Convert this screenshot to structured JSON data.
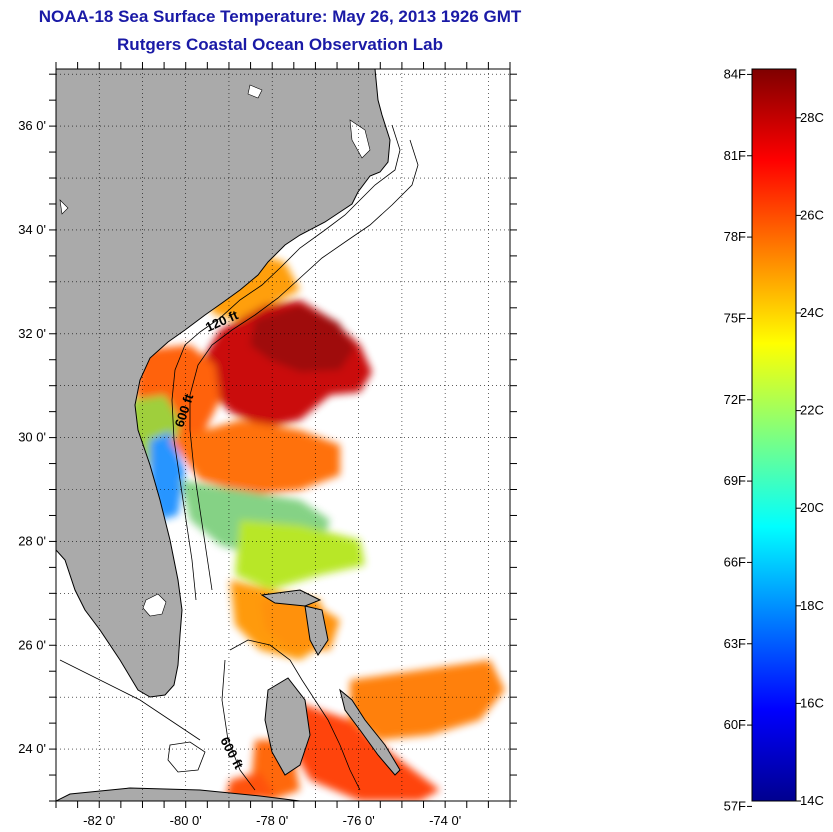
{
  "title": "NOAA-18 Sea Surface Temperature:  May 26, 2013 1926 GMT",
  "subtitle": "Rutgers Coastal Ocean Observation Lab",
  "map": {
    "lon_range": [
      -83.0,
      -72.5
    ],
    "lat_range": [
      23.0,
      37.1
    ],
    "lon_ticks": [
      {
        "v": -82,
        "label": "-82 0'"
      },
      {
        "v": -80,
        "label": "-80 0'"
      },
      {
        "v": -78,
        "label": "-78 0'"
      },
      {
        "v": -76,
        "label": "-76 0'"
      },
      {
        "v": -74,
        "label": "-74 0'"
      }
    ],
    "lat_ticks": [
      {
        "v": 24,
        "label": "24 0'"
      },
      {
        "v": 26,
        "label": "26 0'"
      },
      {
        "v": 28,
        "label": "28 0'"
      },
      {
        "v": 30,
        "label": "30 0'"
      },
      {
        "v": 32,
        "label": "32 0'"
      },
      {
        "v": 34,
        "label": "34 0'"
      },
      {
        "v": 36,
        "label": "36 0'"
      }
    ],
    "contour_labels": {
      "c120": "120 ft",
      "c600a": "600 ft",
      "c600b": "600 ft"
    },
    "colors": {
      "land": "#aaaaaa",
      "contour": "#000000"
    }
  },
  "colorbar": {
    "temp_c_range": [
      14,
      29
    ],
    "f_labels": [
      {
        "v": 84,
        "label": "84F"
      },
      {
        "v": 81,
        "label": "81F"
      },
      {
        "v": 78,
        "label": "78F"
      },
      {
        "v": 75,
        "label": "75F"
      },
      {
        "v": 72,
        "label": "72F"
      },
      {
        "v": 69,
        "label": "69F"
      },
      {
        "v": 66,
        "label": "66F"
      },
      {
        "v": 63,
        "label": "63F"
      },
      {
        "v": 60,
        "label": "60F"
      },
      {
        "v": 57,
        "label": "57F"
      }
    ],
    "c_labels": [
      {
        "v": 28,
        "label": "28C"
      },
      {
        "v": 26,
        "label": "26C"
      },
      {
        "v": 24,
        "label": "24C"
      },
      {
        "v": 22,
        "label": "22C"
      },
      {
        "v": 20,
        "label": "20C"
      },
      {
        "v": 18,
        "label": "18C"
      },
      {
        "v": 16,
        "label": "16C"
      },
      {
        "v": 14,
        "label": "14C"
      }
    ],
    "colormap": "jet"
  }
}
